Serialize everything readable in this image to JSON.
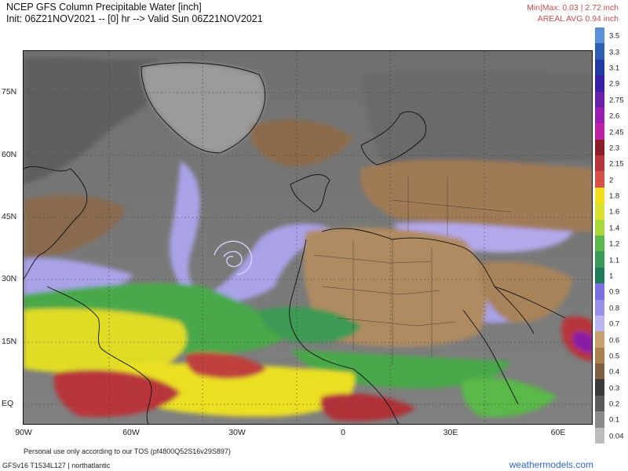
{
  "header": {
    "title": "NCEP GFS Column Precipitable Water [inch]",
    "init_line": "Init: 06Z21NOV2021 -- [0] hr --> Valid Sun 06Z21NOV2021",
    "minmax": "Min|Max: 0.03 | 2.72 inch",
    "areal_avg": "AREAL AVG 0.94 inch"
  },
  "map": {
    "lat_labels": [
      "75N",
      "60N",
      "45N",
      "30N",
      "15N",
      "EQ"
    ],
    "lon_labels": [
      "90W",
      "60W",
      "30W",
      "0",
      "30E",
      "60E"
    ],
    "colors": {
      "ocean_dry": "#7a7a7a",
      "land_dry": "#8f8f8f",
      "brown": "#a07a55",
      "tan": "#c9a57a",
      "lavender": "#a9a2e8",
      "green": "#4aa84a",
      "yellow_green": "#b8d83a",
      "yellow": "#f0e020",
      "red": "#b8363a",
      "purple": "#8a1fa8"
    }
  },
  "colorbar": {
    "levels": [
      {
        "label": "3.5",
        "color": "#5b8fd8"
      },
      {
        "label": "3.3",
        "color": "#2d5fb0"
      },
      {
        "label": "3.1",
        "color": "#1f3aa0"
      },
      {
        "label": "2.9",
        "color": "#3a1fa8"
      },
      {
        "label": "2.75",
        "color": "#6a1faa"
      },
      {
        "label": "2.6",
        "color": "#9a1fb0"
      },
      {
        "label": "2.45",
        "color": "#c01fa8"
      },
      {
        "label": "2.3",
        "color": "#8a1f2a"
      },
      {
        "label": "2.15",
        "color": "#b8363a"
      },
      {
        "label": "2",
        "color": "#d8504a"
      },
      {
        "label": "1.8",
        "color": "#f0e020"
      },
      {
        "label": "1.6",
        "color": "#dce030"
      },
      {
        "label": "1.4",
        "color": "#a8d83a"
      },
      {
        "label": "1.2",
        "color": "#5ab84a"
      },
      {
        "label": "1.1",
        "color": "#3a9a5a"
      },
      {
        "label": "1",
        "color": "#1f7a5a"
      },
      {
        "label": "0.9",
        "color": "#7a70e0"
      },
      {
        "label": "0.8",
        "color": "#9a92ea"
      },
      {
        "label": "0.7",
        "color": "#bab4f0"
      },
      {
        "label": "0.6",
        "color": "#c8a070"
      },
      {
        "label": "0.5",
        "color": "#a8804f"
      },
      {
        "label": "0.4",
        "color": "#806040"
      },
      {
        "label": "0.3",
        "color": "#3a3a3a"
      },
      {
        "label": "0.2",
        "color": "#5a5a5a"
      },
      {
        "label": "0.1",
        "color": "#8a8a8a"
      },
      {
        "label": "0.04",
        "color": "#bcbcbc"
      }
    ]
  },
  "footer": {
    "tos": "Personal use only according to our TOS (pf4800Q52S16v29S897)",
    "model": "GFSv16 T1534L127 | northatlantic",
    "brand": "weathermodels.com"
  }
}
